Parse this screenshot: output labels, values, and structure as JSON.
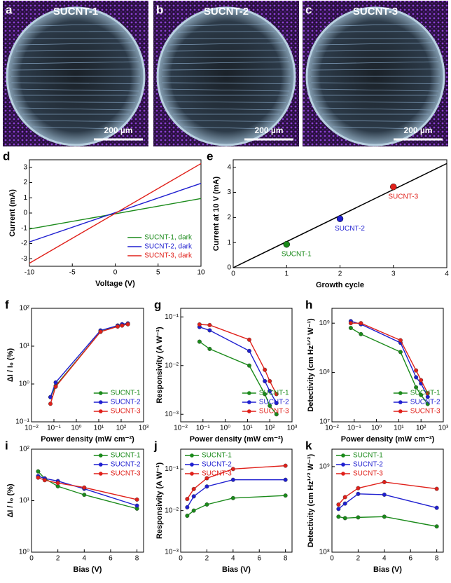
{
  "micrographs": [
    {
      "letter": "a",
      "label": "SUCNT-1",
      "scale_bar": "200 µm"
    },
    {
      "letter": "b",
      "label": "SUCNT-2",
      "scale_bar": "200 µm"
    },
    {
      "letter": "c",
      "label": "SUCNT-3",
      "scale_bar": "200 µm"
    }
  ],
  "chart_data": [
    {
      "type": "line",
      "letter": "d",
      "x_label": "Voltage (V)",
      "y_label": "Current (mA)",
      "x": [
        -10,
        10
      ],
      "xlim": [
        -10,
        10
      ],
      "xticks": [
        -10,
        -5,
        0,
        5,
        10
      ],
      "ylim": [
        -3.5,
        3.5
      ],
      "yticks": [
        -3,
        -2,
        -1,
        0,
        1,
        2,
        3
      ],
      "markers": false,
      "legend": "lower right",
      "series": [
        {
          "name": "SUCNT-1, dark",
          "color": "#1a8a1a",
          "values": [
            -1.05,
            0.95
          ]
        },
        {
          "name": "SUCNT-2, dark",
          "color": "#1f1fd0",
          "values": [
            -1.9,
            1.95
          ]
        },
        {
          "name": "SUCNT-3, dark",
          "color": "#e0201a",
          "values": [
            -3.3,
            3.25
          ]
        }
      ]
    },
    {
      "type": "scatter",
      "letter": "e",
      "x_label": "Growth cycle",
      "y_label": "Current at 10 V (mA)",
      "x": [
        1,
        2,
        3
      ],
      "values": [
        0.93,
        1.95,
        3.22
      ],
      "colors": [
        "#1a8a1a",
        "#1f1fd0",
        "#e0201a"
      ],
      "point_labels": [
        "SUCNT-1",
        "SUCNT-2",
        "SUCNT-3"
      ],
      "fit": {
        "x": [
          0,
          4
        ],
        "values": [
          0,
          4.15
        ],
        "color": "#000000"
      },
      "xlim": [
        0,
        4
      ],
      "xticks": [
        0,
        1,
        2,
        3,
        4
      ],
      "ylim": [
        0,
        4.3
      ],
      "yticks": [
        0,
        1,
        2,
        3,
        4
      ]
    },
    {
      "type": "line",
      "letter": "f",
      "x_label": "Power density (mW cm⁻²)",
      "y_label": "ΔI / I₀ (%)",
      "x_log": true,
      "y_log": true,
      "markers": true,
      "legend": "lower right",
      "x": [
        0.07,
        0.12,
        12,
        70,
        110,
        200
      ],
      "xlim": [
        0.01,
        1000
      ],
      "xticks": [
        {
          "value": 0.01,
          "label": "10⁻²"
        },
        {
          "value": 0.1,
          "label": "10⁻¹"
        },
        {
          "value": 1,
          "label": "10⁰"
        },
        {
          "value": 10,
          "label": "10¹"
        },
        {
          "value": 100,
          "label": "10²"
        },
        {
          "value": 1000,
          "label": "10³"
        }
      ],
      "ylim": [
        0.1,
        100
      ],
      "yticks": [
        {
          "value": 0.1,
          "label": "10⁻¹"
        },
        {
          "value": 1,
          "label": "10⁰"
        },
        {
          "value": 10,
          "label": "10¹"
        },
        {
          "value": 100,
          "label": "10²"
        }
      ],
      "series": [
        {
          "name": "SUCNT-1",
          "color": "#1a8a1a",
          "values": [
            0.45,
            0.9,
            24,
            35,
            37,
            38
          ]
        },
        {
          "name": "SUCNT-2",
          "color": "#1f1fd0",
          "values": [
            0.45,
            1.1,
            26,
            35,
            38,
            40
          ]
        },
        {
          "name": "SUCNT-3",
          "color": "#e0201a",
          "values": [
            0.3,
            0.85,
            24,
            33,
            35,
            38
          ]
        }
      ]
    },
    {
      "type": "line",
      "letter": "g",
      "x_label": "Power density (mW cm⁻²)",
      "y_label": "Responsivity (A W⁻¹)",
      "x_log": true,
      "y_log": true,
      "markers": true,
      "legend": "lower right",
      "x": [
        0.07,
        0.2,
        12,
        60,
        100,
        200
      ],
      "xlim": [
        0.01,
        1000
      ],
      "xticks": [
        {
          "value": 0.01,
          "label": "10⁻²"
        },
        {
          "value": 0.1,
          "label": "10⁻¹"
        },
        {
          "value": 1,
          "label": "10⁰"
        },
        {
          "value": 10,
          "label": "10¹"
        },
        {
          "value": 100,
          "label": "10²"
        },
        {
          "value": 1000,
          "label": "10³"
        }
      ],
      "ylim": [
        0.0007,
        0.15
      ],
      "yticks": [
        {
          "value": 0.001,
          "label": "10⁻³"
        },
        {
          "value": 0.01,
          "label": "10⁻²"
        },
        {
          "value": 0.1,
          "label": "10⁻¹"
        }
      ],
      "series": [
        {
          "name": "SUCNT-1",
          "color": "#1a8a1a",
          "values": [
            0.031,
            0.022,
            0.01,
            0.0026,
            0.0015,
            0.001
          ]
        },
        {
          "name": "SUCNT-2",
          "color": "#1f1fd0",
          "values": [
            0.062,
            0.053,
            0.02,
            0.0048,
            0.003,
            0.0017
          ]
        },
        {
          "name": "SUCNT-3",
          "color": "#e0201a",
          "values": [
            0.07,
            0.068,
            0.034,
            0.0082,
            0.0048,
            0.0026
          ]
        }
      ]
    },
    {
      "type": "line",
      "letter": "h",
      "x_label": "Power density (mW cm⁻²)",
      "y_label": "Detectivity (cm Hz¹ᐟ² W⁻¹)",
      "x_log": true,
      "y_log": true,
      "markers": true,
      "legend": "lower right",
      "x": [
        0.07,
        0.2,
        12,
        60,
        100,
        200
      ],
      "xlim": [
        0.01,
        1000
      ],
      "xticks": [
        {
          "value": 0.01,
          "label": "10⁻²"
        },
        {
          "value": 0.1,
          "label": "10⁻¹"
        },
        {
          "value": 1,
          "label": "10⁰"
        },
        {
          "value": 10,
          "label": "10¹"
        },
        {
          "value": 100,
          "label": "10²"
        },
        {
          "value": 1000,
          "label": "10³"
        }
      ],
      "ylim": [
        10000000,
        2000000000
      ],
      "yticks": [
        {
          "value": 10000000,
          "label": "10⁷"
        },
        {
          "value": 100000000,
          "label": "10⁸"
        },
        {
          "value": 1000000000,
          "label": "10⁹"
        }
      ],
      "series": [
        {
          "name": "SUCNT-1",
          "color": "#1a8a1a",
          "values": [
            800000000,
            600000000,
            260000000,
            50000000,
            35000000,
            23000000
          ]
        },
        {
          "name": "SUCNT-2",
          "color": "#1f1fd0",
          "values": [
            1100000000,
            950000000,
            400000000,
            80000000,
            60000000,
            32000000
          ]
        },
        {
          "name": "SUCNT-3",
          "color": "#e0201a",
          "values": [
            1000000000,
            1000000000,
            450000000,
            110000000,
            70000000,
            38000000
          ]
        }
      ]
    },
    {
      "type": "line",
      "letter": "i",
      "x_label": "Bias (V)",
      "y_label": "ΔI / I₀ (%)",
      "y_log": true,
      "markers": true,
      "legend": "upper right",
      "x": [
        0.5,
        1,
        2,
        4,
        8
      ],
      "xlim": [
        0,
        8.5
      ],
      "xticks": [
        0,
        2,
        4,
        6,
        8
      ],
      "ylim": [
        1,
        100
      ],
      "yticks": [
        {
          "value": 1,
          "label": "10⁰"
        },
        {
          "value": 10,
          "label": "10¹"
        },
        {
          "value": 100,
          "label": "10²"
        }
      ],
      "series": [
        {
          "name": "SUCNT-1",
          "color": "#1a8a1a",
          "values": [
            37,
            27,
            19,
            13,
            7
          ]
        },
        {
          "name": "SUCNT-2",
          "color": "#1f1fd0",
          "values": [
            30,
            27,
            24,
            17,
            8
          ]
        },
        {
          "name": "SUCNT-3",
          "color": "#e0201a",
          "values": [
            28,
            25,
            22,
            18,
            10.5
          ]
        }
      ]
    },
    {
      "type": "line",
      "letter": "j",
      "x_label": "Bias (V)",
      "y_label": "Responsivity (A W⁻¹)",
      "y_log": true,
      "markers": true,
      "legend": "upper left",
      "x": [
        0.5,
        1,
        2,
        4,
        8
      ],
      "xlim": [
        0,
        8.5
      ],
      "xticks": [
        0,
        2,
        4,
        6,
        8
      ],
      "ylim": [
        0.001,
        0.3
      ],
      "yticks": [
        {
          "value": 0.001,
          "label": "10⁻³"
        },
        {
          "value": 0.01,
          "label": "10⁻²"
        },
        {
          "value": 0.1,
          "label": "10⁻¹"
        }
      ],
      "series": [
        {
          "name": "SUCNT-1",
          "color": "#1a8a1a",
          "values": [
            0.0075,
            0.01,
            0.014,
            0.02,
            0.023
          ]
        },
        {
          "name": "SUCNT-2",
          "color": "#1f1fd0",
          "values": [
            0.012,
            0.022,
            0.038,
            0.055,
            0.055
          ]
        },
        {
          "name": "SUCNT-3",
          "color": "#e0201a",
          "values": [
            0.019,
            0.033,
            0.06,
            0.1,
            0.12
          ]
        }
      ]
    },
    {
      "type": "line",
      "letter": "k",
      "x_label": "Bias (V)",
      "y_label": "Detectivity (cm Hz¹ᐟ² W⁻¹)",
      "y_log": true,
      "markers": true,
      "legend": "upper left",
      "x": [
        0.5,
        1,
        2,
        4,
        8
      ],
      "xlim": [
        0,
        8.5
      ],
      "xticks": [
        0,
        2,
        4,
        6,
        8
      ],
      "ylim": [
        100000000,
        1600000000
      ],
      "yticks": [
        {
          "value": 100000000,
          "label": "10⁸"
        },
        {
          "value": 1000000000,
          "label": "10⁹"
        }
      ],
      "series": [
        {
          "name": "SUCNT-1",
          "color": "#1a8a1a",
          "values": [
            260000000,
            250000000,
            255000000,
            260000000,
            200000000
          ]
        },
        {
          "name": "SUCNT-2",
          "color": "#1f1fd0",
          "values": [
            320000000,
            370000000,
            480000000,
            470000000,
            330000000
          ]
        },
        {
          "name": "SUCNT-3",
          "color": "#e0201a",
          "values": [
            360000000,
            440000000,
            560000000,
            660000000,
            550000000
          ]
        }
      ]
    }
  ]
}
